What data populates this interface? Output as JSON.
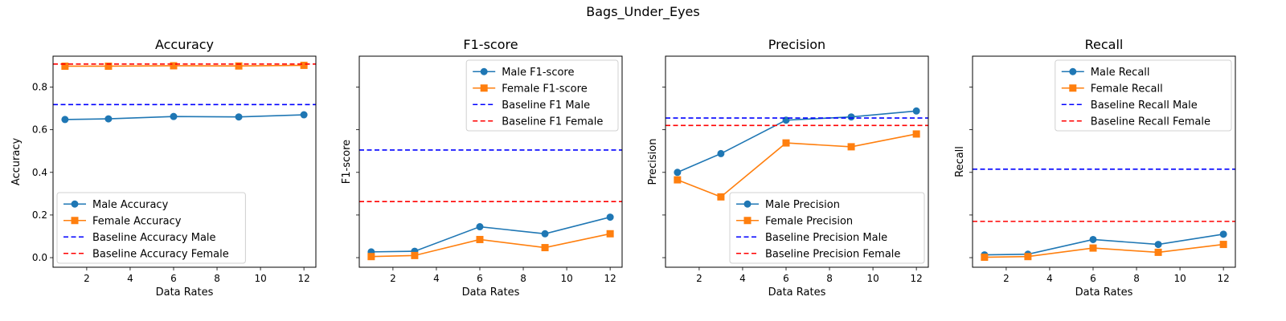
{
  "figure": {
    "title": "Bags_Under_Eyes"
  },
  "colors": {
    "male": "#1f77b4",
    "female": "#ff7f0e",
    "baseline_male": "#0000ff",
    "baseline_female": "#ff0000"
  },
  "chart_data": [
    {
      "type": "line",
      "title": "Accuracy",
      "xlabel": "Data Rates",
      "ylabel": "Accuracy",
      "x": [
        1,
        3,
        6,
        9,
        12
      ],
      "xlim": [
        0.45,
        12.55
      ],
      "ylim": [
        -0.045,
        0.945
      ],
      "xticks": [
        2,
        4,
        6,
        8,
        10,
        12
      ],
      "yticks": [
        0.0,
        0.2,
        0.4,
        0.6,
        0.8
      ],
      "show_ytick_labels": true,
      "legend_loc": "lower-left",
      "series": [
        {
          "name": "Male Accuracy",
          "values": [
            0.648,
            0.651,
            0.662,
            0.66,
            0.67
          ],
          "style": "solid",
          "marker": "circle",
          "color": "#1f77b4"
        },
        {
          "name": "Female Accuracy",
          "values": [
            0.898,
            0.898,
            0.9,
            0.899,
            0.902
          ],
          "style": "solid",
          "marker": "square",
          "color": "#ff7f0e"
        },
        {
          "name": "Baseline Accuracy Male",
          "value": 0.718,
          "style": "dashed",
          "color": "#0000ff"
        },
        {
          "name": "Baseline Accuracy Female",
          "value": 0.908,
          "style": "dashed",
          "color": "#ff0000"
        }
      ]
    },
    {
      "type": "line",
      "title": "F1-score",
      "xlabel": "Data Rates",
      "ylabel": "F1-score",
      "x": [
        1,
        3,
        6,
        9,
        12
      ],
      "xlim": [
        0.45,
        12.55
      ],
      "ylim": [
        -0.045,
        0.945
      ],
      "xticks": [
        2,
        4,
        6,
        8,
        10,
        12
      ],
      "yticks": [
        0.0,
        0.2,
        0.4,
        0.6,
        0.8
      ],
      "show_ytick_labels": false,
      "legend_loc": "upper-right",
      "series": [
        {
          "name": "Male F1-score",
          "values": [
            0.027,
            0.03,
            0.145,
            0.112,
            0.19
          ],
          "style": "solid",
          "marker": "circle",
          "color": "#1f77b4"
        },
        {
          "name": "Female F1-score",
          "values": [
            0.005,
            0.01,
            0.085,
            0.047,
            0.112
          ],
          "style": "solid",
          "marker": "square",
          "color": "#ff7f0e"
        },
        {
          "name": "Baseline F1 Male",
          "value": 0.505,
          "style": "dashed",
          "color": "#0000ff"
        },
        {
          "name": "Baseline F1 Female",
          "value": 0.263,
          "style": "dashed",
          "color": "#ff0000"
        }
      ]
    },
    {
      "type": "line",
      "title": "Precision",
      "xlabel": "Data Rates",
      "ylabel": "Precision",
      "x": [
        1,
        3,
        6,
        9,
        12
      ],
      "xlim": [
        0.45,
        12.55
      ],
      "ylim": [
        -0.045,
        0.945
      ],
      "xticks": [
        2,
        4,
        6,
        8,
        10,
        12
      ],
      "yticks": [
        0.0,
        0.2,
        0.4,
        0.6,
        0.8
      ],
      "show_ytick_labels": false,
      "legend_loc": "lower-right",
      "series": [
        {
          "name": "Male Precision",
          "values": [
            0.4,
            0.488,
            0.645,
            0.66,
            0.688
          ],
          "style": "solid",
          "marker": "circle",
          "color": "#1f77b4"
        },
        {
          "name": "Female Precision",
          "values": [
            0.365,
            0.285,
            0.538,
            0.52,
            0.58
          ],
          "style": "solid",
          "marker": "square",
          "color": "#ff7f0e"
        },
        {
          "name": "Baseline Precision Male",
          "value": 0.655,
          "style": "dashed",
          "color": "#0000ff"
        },
        {
          "name": "Baseline Precision Female",
          "value": 0.62,
          "style": "dashed",
          "color": "#ff0000"
        }
      ]
    },
    {
      "type": "line",
      "title": "Recall",
      "xlabel": "Data Rates",
      "ylabel": "Recall",
      "x": [
        1,
        3,
        6,
        9,
        12
      ],
      "xlim": [
        0.45,
        12.55
      ],
      "ylim": [
        -0.045,
        0.945
      ],
      "xticks": [
        2,
        4,
        6,
        8,
        10,
        12
      ],
      "yticks": [
        0.0,
        0.2,
        0.4,
        0.6,
        0.8
      ],
      "show_ytick_labels": false,
      "legend_loc": "upper-right",
      "series": [
        {
          "name": "Male Recall",
          "values": [
            0.013,
            0.016,
            0.085,
            0.062,
            0.11
          ],
          "style": "solid",
          "marker": "circle",
          "color": "#1f77b4"
        },
        {
          "name": "Female Recall",
          "values": [
            0.002,
            0.005,
            0.045,
            0.025,
            0.062
          ],
          "style": "solid",
          "marker": "square",
          "color": "#ff7f0e"
        },
        {
          "name": "Baseline Recall Male",
          "value": 0.415,
          "style": "dashed",
          "color": "#0000ff"
        },
        {
          "name": "Baseline Recall Female",
          "value": 0.17,
          "style": "dashed",
          "color": "#ff0000"
        }
      ]
    }
  ]
}
